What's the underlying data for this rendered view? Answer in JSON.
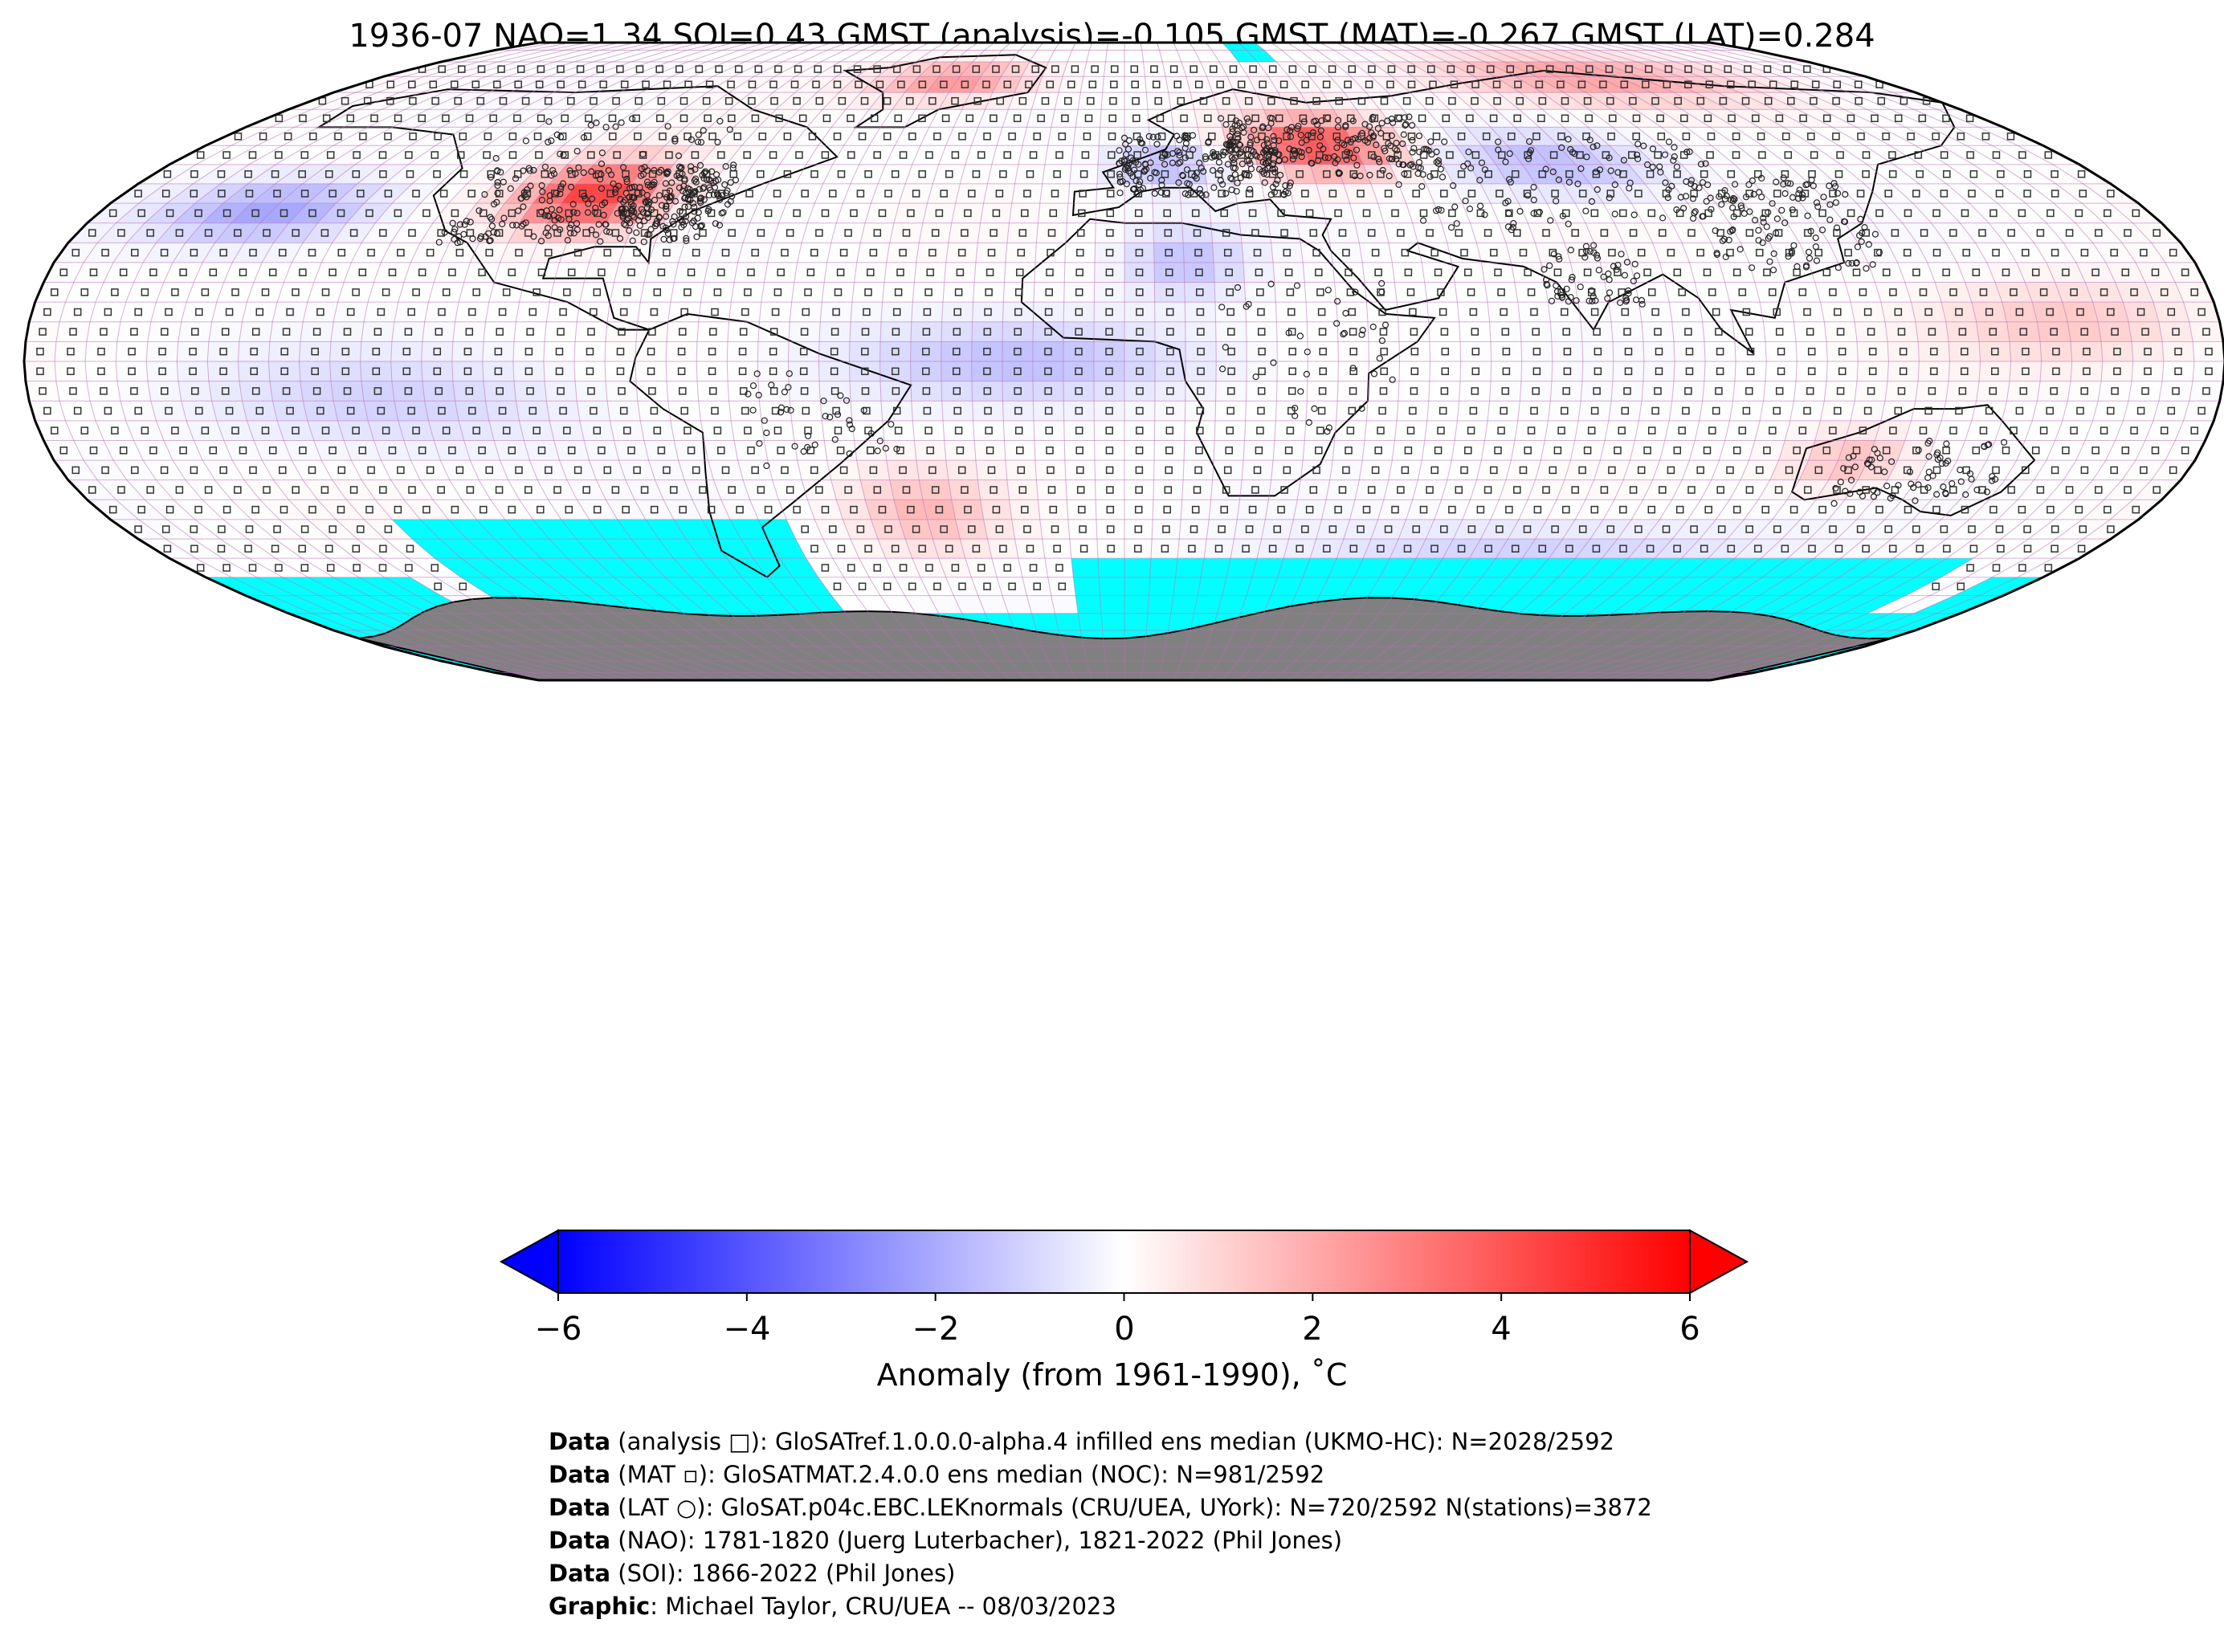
{
  "title": "1936-07 NAO=1.34 SOI=0.43 GMST (analysis)=-0.105 GMST (MAT)=-0.267 GMST (LAT)=0.284",
  "colorbar": {
    "label": "Anomaly (from 1961-1990), ˚C",
    "ticks": [
      "−6",
      "−4",
      "−2",
      "0",
      "2",
      "4",
      "6"
    ],
    "range": [
      -6,
      6
    ],
    "colormap": "bwr",
    "extend": "both",
    "colors": {
      "min": "#0000ff",
      "mid": "#ffffff",
      "max": "#ff0000"
    }
  },
  "map": {
    "projection": "Robinson",
    "grid": "5-degree",
    "missing_ocean_color": "#00ffff",
    "antarctica_color": "#808080",
    "gridline_color": "#b56fb5",
    "anomaly_regions": [
      {
        "region": "North America (central US)",
        "anomaly": 4.5
      },
      {
        "region": "Eastern Europe / western Russia",
        "anomaly": 4.0
      },
      {
        "region": "Greenland",
        "anomaly": 2.5
      },
      {
        "region": "Northern Siberia",
        "anomaly": 2.0
      },
      {
        "region": "North Pacific",
        "anomaly": -2.0
      },
      {
        "region": "Western Europe",
        "anomaly": -1.5
      },
      {
        "region": "Central Asia",
        "anomaly": -1.5
      },
      {
        "region": "Sahara",
        "anomaly": -1.5
      },
      {
        "region": "South Atlantic (SE of Brazil)",
        "anomaly": 1.5
      },
      {
        "region": "Northwest Australia",
        "anomaly": 1.5
      },
      {
        "region": "Tropical Atlantic",
        "anomaly": -1.5
      },
      {
        "region": "Southern Ocean (Indian sector)",
        "anomaly": -1.0
      }
    ]
  },
  "credits": [
    {
      "label": "Data",
      "text": " (analysis □): GloSATref.1.0.0.0-alpha.4 infilled ens median (UKMO-HC): N=2028/2592"
    },
    {
      "label": "Data",
      "text": " (MAT ▫): GloSATMAT.2.4.0.0 ens median (NOC): N=981/2592"
    },
    {
      "label": "Data",
      "text": " (LAT ○): GloSAT.p04c.EBC.LEKnormals (CRU/UEA, UYork): N=720/2592 N(stations)=3872"
    },
    {
      "label": "Data",
      "text": " (NAO): 1781-1820 (Juerg Luterbacher), 1821-2022 (Phil Jones)"
    },
    {
      "label": "Data",
      "text": " (SOI): 1866-2022 (Phil Jones)"
    },
    {
      "label": "Graphic",
      "text": ": Michael Taylor, CRU/UEA -- 08/03/2023"
    }
  ]
}
